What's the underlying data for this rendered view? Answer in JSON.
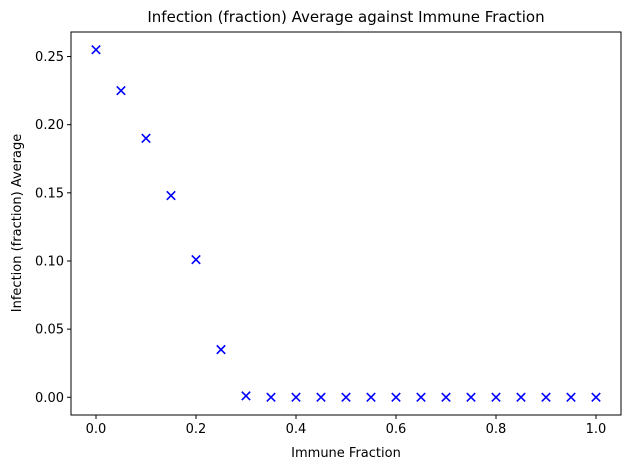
{
  "chart_data": {
    "type": "scatter",
    "title": "Infection (fraction) Average against Immune Fraction",
    "xlabel": "Immune Fraction",
    "ylabel": "Infection (fraction) Average",
    "xlim": [
      -0.05,
      1.05
    ],
    "ylim": [
      -0.013,
      0.268
    ],
    "xticks": [
      0.0,
      0.2,
      0.4,
      0.6,
      0.8,
      1.0
    ],
    "xtick_labels": [
      "0.0",
      "0.2",
      "0.4",
      "0.6",
      "0.8",
      "1.0"
    ],
    "yticks": [
      0.0,
      0.05,
      0.1,
      0.15,
      0.2,
      0.25
    ],
    "ytick_labels": [
      "0.00",
      "0.05",
      "0.10",
      "0.15",
      "0.20",
      "0.25"
    ],
    "grid": false,
    "marker": "x",
    "series": [
      {
        "color": "#0000ff",
        "x": [
          0.0,
          0.05,
          0.1,
          0.15,
          0.2,
          0.25,
          0.3,
          0.35,
          0.4,
          0.45,
          0.5,
          0.55,
          0.6,
          0.65,
          0.7,
          0.75,
          0.8,
          0.85,
          0.9,
          0.95,
          1.0
        ],
        "y": [
          0.255,
          0.225,
          0.19,
          0.148,
          0.101,
          0.035,
          0.001,
          0.0,
          0.0,
          0.0,
          0.0,
          0.0,
          0.0,
          0.0,
          0.0,
          0.0,
          0.0,
          0.0,
          0.0,
          0.0,
          0.0
        ]
      }
    ]
  }
}
